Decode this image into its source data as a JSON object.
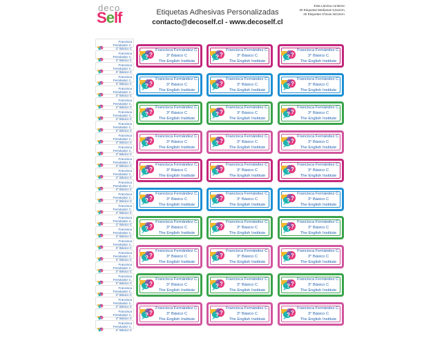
{
  "logo": {
    "deco": "deco",
    "self_s": "S",
    "self_e": "e",
    "self_lf": "lf"
  },
  "header": {
    "title": "Etiquetas Adhesivas Personalizadas",
    "contact": "contacto@decoself.cl - www.decoself.cl"
  },
  "info": {
    "line1": "Esta Lámina contiene:",
    "line2": "30 Etiquetas Medianas 5,5x2cm.",
    "line3": "25 Etiquetas Chicas 3x0,8cm."
  },
  "label": {
    "name": "Francisca Fernández C.",
    "grade": "3° Básico C",
    "school": "The English Institute",
    "icon": "speech-bubbles-question-icon"
  },
  "colors": {
    "magenta": "#c3267b",
    "blue": "#1d8fd3",
    "green": "#39a34a",
    "pink": "#d1559e",
    "bubble_yellow": "#f5b82e",
    "bubble_teal": "#1fb3b0",
    "bubble_pink": "#e6377c",
    "bubble_purple": "#7b56a8"
  },
  "big_row_colors": [
    "magenta",
    "blue",
    "green",
    "pink",
    "magenta",
    "blue",
    "green",
    "pink",
    "green",
    "pink"
  ],
  "small_count": 25
}
